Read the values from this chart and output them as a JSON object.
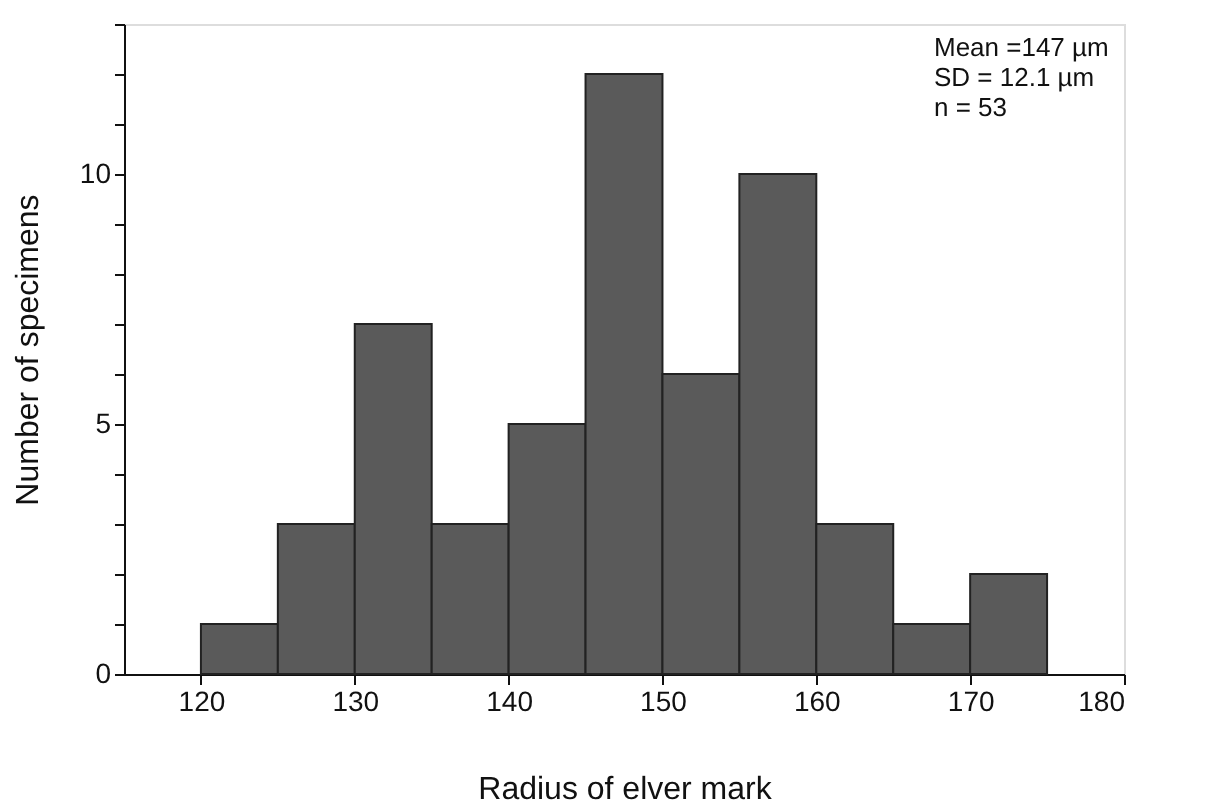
{
  "chart_data": {
    "type": "histogram",
    "xlabel": "Radius of elver mark",
    "ylabel": "Number of specimens",
    "bins": [
      120,
      125,
      130,
      135,
      140,
      145,
      150,
      155,
      160,
      165,
      170,
      175
    ],
    "values": [
      1,
      3,
      7,
      3,
      5,
      12,
      6,
      10,
      3,
      1,
      2
    ],
    "color": "#5a5a5a",
    "xlim": [
      115,
      180
    ],
    "xticks": [
      120,
      130,
      140,
      150,
      160,
      170,
      180
    ],
    "ylim": [
      0,
      13
    ],
    "yticks": [
      0,
      {
        "value": 1,
        "label": null
      },
      {
        "value": 2,
        "label": null
      },
      {
        "value": 3,
        "label": null
      },
      {
        "value": 4,
        "label": null
      },
      5,
      {
        "value": 6,
        "label": null
      },
      {
        "value": 7,
        "label": null
      },
      {
        "value": 8,
        "label": null
      },
      {
        "value": 9,
        "label": null
      },
      10,
      {
        "value": 11,
        "label": null
      },
      {
        "value": 12,
        "label": null
      },
      {
        "value": 13,
        "label": null
      }
    ],
    "annotations": [
      "Mean =147 µm",
      "SD = 12.1 µm",
      "n = 53"
    ],
    "grid": false
  }
}
